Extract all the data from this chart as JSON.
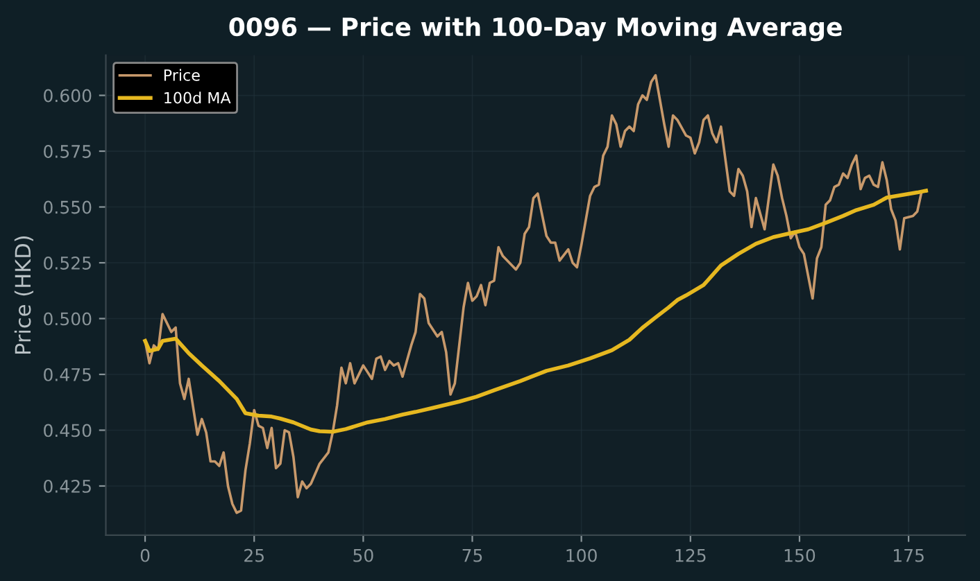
{
  "chart_data": {
    "type": "line",
    "title": "0096 — Price with 100-Day Moving Average",
    "ylabel": "Price (HKD)",
    "xlim": [
      -9,
      188
    ],
    "ylim": [
      0.403,
      0.618
    ],
    "xticks": [
      0,
      25,
      50,
      75,
      100,
      125,
      150,
      175
    ],
    "yticks": [
      0.425,
      {
        "value": 0.45,
        "label": "0.450"
      },
      0.475,
      {
        "value": 0.5,
        "label": "0.500"
      },
      0.525,
      {
        "value": 0.55,
        "label": "0.550"
      },
      0.575,
      {
        "value": 0.6,
        "label": "0.600"
      }
    ],
    "grid": true,
    "legend": "top left",
    "line_style": "solid",
    "marker": "none",
    "series": [
      {
        "name": "Price",
        "color": "#c8996b",
        "x": [
          0,
          1,
          2,
          3,
          4,
          6,
          7,
          8,
          9,
          10,
          12,
          13,
          14,
          15,
          16,
          17,
          18,
          19,
          20,
          21,
          22,
          23,
          24,
          25,
          26,
          27,
          28,
          29,
          30,
          31,
          32,
          33,
          34,
          35,
          36,
          37,
          38,
          40,
          42,
          43,
          44,
          45,
          46,
          47,
          48,
          50,
          52,
          53,
          54,
          55,
          56,
          57,
          58,
          59,
          61,
          62,
          63,
          64,
          65,
          67,
          68,
          69,
          70,
          71,
          73,
          74,
          75,
          76,
          77,
          78,
          79,
          80,
          81,
          82,
          85,
          86,
          87,
          88,
          89,
          90,
          92,
          93,
          94,
          95,
          97,
          98,
          99,
          100,
          102,
          103,
          104,
          105,
          106,
          107,
          108,
          109,
          110,
          111,
          112,
          113,
          114,
          115,
          116,
          117,
          119,
          120,
          121,
          122,
          124,
          125,
          126,
          127,
          128,
          129,
          130,
          131,
          132,
          134,
          135,
          136,
          137,
          138,
          139,
          140,
          142,
          144,
          145,
          146,
          147,
          148,
          149,
          150,
          151,
          153,
          154,
          155,
          156,
          157,
          158,
          159,
          160,
          161,
          162,
          163,
          164,
          165,
          166,
          167,
          168,
          169,
          170,
          171,
          172,
          173,
          174,
          176,
          177,
          178,
          179
        ],
        "values": [
          0.49,
          0.48,
          0.488,
          0.486,
          0.502,
          0.494,
          0.496,
          0.471,
          0.464,
          0.473,
          0.448,
          0.455,
          0.449,
          0.436,
          0.436,
          0.434,
          0.44,
          0.425,
          0.417,
          0.413,
          0.414,
          0.432,
          0.444,
          0.459,
          0.452,
          0.451,
          0.442,
          0.451,
          0.433,
          0.435,
          0.45,
          0.449,
          0.438,
          0.42,
          0.427,
          0.424,
          0.426,
          0.435,
          0.44,
          0.449,
          0.461,
          0.478,
          0.471,
          0.48,
          0.471,
          0.479,
          0.473,
          0.482,
          0.483,
          0.477,
          0.481,
          0.479,
          0.48,
          0.474,
          0.488,
          0.494,
          0.511,
          0.509,
          0.498,
          0.492,
          0.494,
          0.485,
          0.466,
          0.471,
          0.505,
          0.516,
          0.508,
          0.51,
          0.515,
          0.506,
          0.516,
          0.517,
          0.532,
          0.528,
          0.522,
          0.525,
          0.538,
          0.541,
          0.554,
          0.556,
          0.537,
          0.534,
          0.534,
          0.526,
          0.531,
          0.525,
          0.523,
          0.533,
          0.555,
          0.559,
          0.56,
          0.573,
          0.577,
          0.591,
          0.587,
          0.577,
          0.584,
          0.586,
          0.584,
          0.596,
          0.6,
          0.598,
          0.606,
          0.609,
          0.587,
          0.577,
          0.591,
          0.589,
          0.582,
          0.581,
          0.574,
          0.579,
          0.589,
          0.591,
          0.583,
          0.579,
          0.586,
          0.557,
          0.555,
          0.567,
          0.564,
          0.557,
          0.541,
          0.554,
          0.54,
          0.569,
          0.564,
          0.554,
          0.546,
          0.536,
          0.539,
          0.532,
          0.529,
          0.509,
          0.527,
          0.532,
          0.551,
          0.553,
          0.559,
          0.56,
          0.565,
          0.563,
          0.569,
          0.573,
          0.558,
          0.563,
          0.564,
          0.56,
          0.559,
          0.57,
          0.562,
          0.549,
          0.544,
          0.531,
          0.545,
          0.546,
          0.548,
          0.557,
          0.557
        ]
      },
      {
        "name": "100d MA",
        "color": "#e6b820",
        "x": [
          0,
          1,
          3,
          4,
          7,
          10,
          13,
          17,
          21,
          23,
          26,
          29,
          31,
          34,
          38,
          40,
          43,
          46,
          51,
          55,
          59,
          62,
          66,
          72,
          76,
          80,
          86,
          92,
          97,
          102,
          107,
          111,
          114,
          117,
          120,
          122,
          124,
          128,
          132,
          136,
          140,
          144,
          148,
          152,
          156,
          160,
          163,
          167,
          170,
          174,
          177,
          179
        ],
        "values": [
          0.49,
          0.4855,
          0.4865,
          0.49,
          0.491,
          0.4845,
          0.479,
          0.472,
          0.464,
          0.4576,
          0.4565,
          0.4561,
          0.4552,
          0.4535,
          0.4503,
          0.4495,
          0.4493,
          0.4505,
          0.4535,
          0.455,
          0.457,
          0.4582,
          0.46,
          0.4628,
          0.465,
          0.4679,
          0.472,
          0.4766,
          0.479,
          0.4822,
          0.4858,
          0.4905,
          0.4959,
          0.5005,
          0.505,
          0.5083,
          0.5104,
          0.515,
          0.5238,
          0.529,
          0.5335,
          0.5365,
          0.5383,
          0.54,
          0.5429,
          0.546,
          0.5486,
          0.551,
          0.5542,
          0.5555,
          0.5565,
          0.5573
        ]
      }
    ]
  }
}
